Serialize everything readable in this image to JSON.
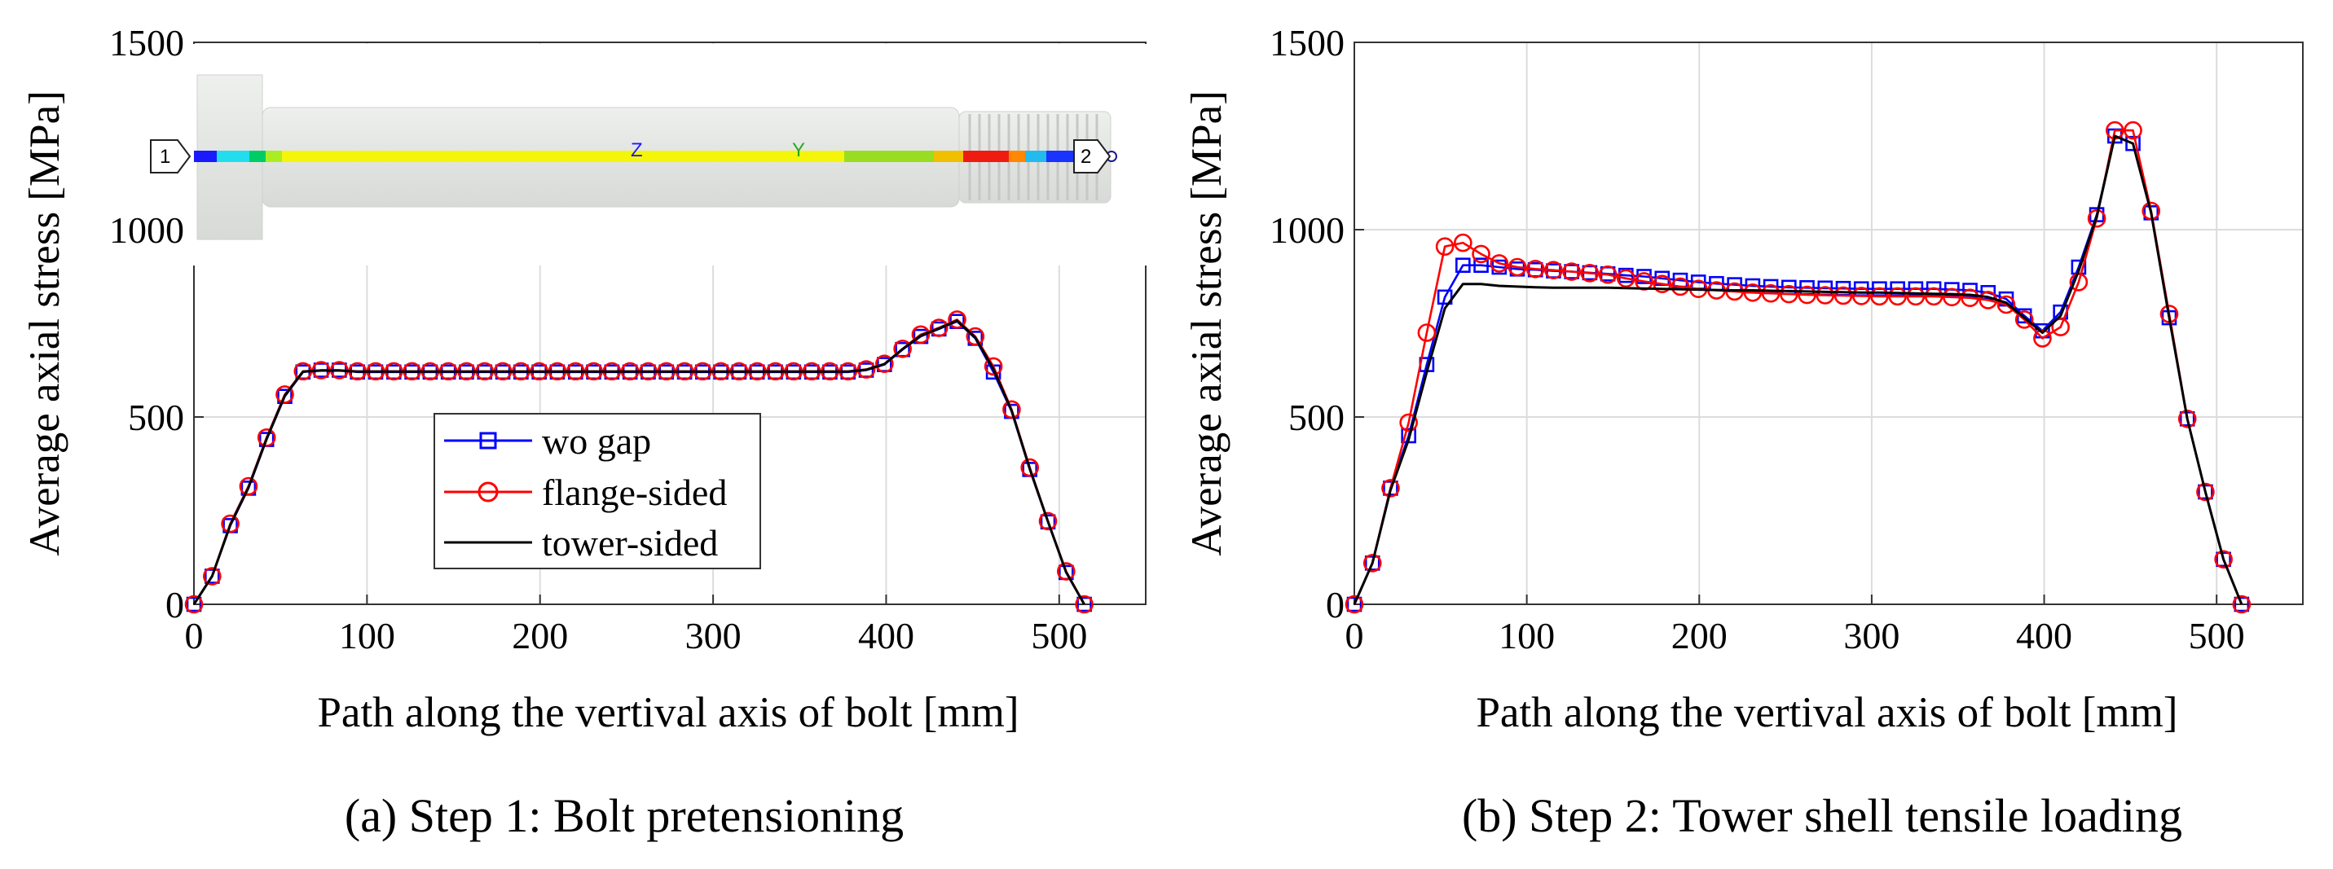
{
  "colors": {
    "wo_gap": "#0000ff",
    "flange_sided": "#ff0000",
    "tower_sided": "#000000",
    "grid": "#dcdcdc",
    "bolt_body": "#e6e8e6"
  },
  "chart_data": [
    {
      "type": "line",
      "id": "a",
      "caption": "(a) Step 1: Bolt pretensioning",
      "xlabel": "Path along the vertival axis of bolt [mm]",
      "ylabel": "Average axial stress [MPa]",
      "xlim": [
        0,
        550
      ],
      "ylim": [
        0,
        1500
      ],
      "xticks": [
        "0",
        "100",
        "200",
        "300",
        "400",
        "500"
      ],
      "yticks": [
        "0",
        "500",
        "1000",
        "1500"
      ],
      "grid": true,
      "legend_position": "lower-center",
      "inset_image": {
        "description": "bolt contour image",
        "labels": [
          "1",
          "2",
          "Z",
          "Y"
        ]
      },
      "series": [
        {
          "name": "wo gap",
          "marker": "square",
          "color_key": "wo_gap",
          "x": [
            0,
            10.5,
            21,
            31.5,
            42,
            52.5,
            63,
            73.5,
            84,
            94.5,
            105,
            115.5,
            126,
            136.5,
            147,
            157.5,
            168,
            178.5,
            189,
            199.5,
            210,
            220.5,
            231,
            241.5,
            252,
            262.5,
            273,
            283.5,
            294,
            304.5,
            315,
            325.5,
            336,
            346.5,
            357,
            367.5,
            378,
            388.5,
            399,
            409.5,
            420,
            430.5,
            441,
            451.5,
            462,
            472.5,
            483,
            493.5,
            504,
            514.5
          ],
          "y": [
            0,
            75,
            210,
            310,
            440,
            555,
            620,
            625,
            625,
            620,
            620,
            620,
            620,
            620,
            620,
            620,
            620,
            620,
            620,
            620,
            620,
            620,
            620,
            620,
            620,
            620,
            620,
            620,
            620,
            620,
            620,
            620,
            620,
            620,
            620,
            620,
            620,
            625,
            640,
            680,
            715,
            735,
            755,
            710,
            620,
            515,
            360,
            220,
            85,
            0
          ]
        },
        {
          "name": "flange-sided",
          "marker": "circle",
          "color_key": "flange_sided",
          "x": [
            0,
            10.5,
            21,
            31.5,
            42,
            52.5,
            63,
            73.5,
            84,
            94.5,
            105,
            115.5,
            126,
            136.5,
            147,
            157.5,
            168,
            178.5,
            189,
            199.5,
            210,
            220.5,
            231,
            241.5,
            252,
            262.5,
            273,
            283.5,
            294,
            304.5,
            315,
            325.5,
            336,
            346.5,
            357,
            367.5,
            378,
            388.5,
            399,
            409.5,
            420,
            430.5,
            441,
            451.5,
            462,
            472.5,
            483,
            493.5,
            504,
            514.5
          ],
          "y": [
            0,
            75,
            215,
            315,
            445,
            560,
            622,
            625,
            625,
            622,
            622,
            622,
            622,
            622,
            622,
            622,
            622,
            622,
            622,
            622,
            622,
            622,
            622,
            622,
            622,
            622,
            622,
            622,
            622,
            622,
            622,
            622,
            622,
            622,
            622,
            622,
            622,
            627,
            642,
            682,
            720,
            738,
            760,
            715,
            635,
            520,
            365,
            222,
            88,
            0
          ]
        },
        {
          "name": "tower-sided",
          "marker": "none",
          "color_key": "tower_sided",
          "x": [
            0,
            10.5,
            21,
            31.5,
            42,
            52.5,
            63,
            73.5,
            84,
            94.5,
            105,
            115.5,
            126,
            136.5,
            147,
            157.5,
            168,
            178.5,
            189,
            199.5,
            210,
            220.5,
            231,
            241.5,
            252,
            262.5,
            273,
            283.5,
            294,
            304.5,
            315,
            325.5,
            336,
            346.5,
            357,
            367.5,
            378,
            388.5,
            399,
            409.5,
            420,
            430.5,
            441,
            451.5,
            462,
            472.5,
            483,
            493.5,
            504,
            514.5
          ],
          "y": [
            0,
            75,
            212,
            312,
            442,
            557,
            621,
            624,
            624,
            621,
            621,
            621,
            621,
            621,
            621,
            621,
            621,
            621,
            621,
            621,
            621,
            621,
            621,
            621,
            621,
            621,
            621,
            621,
            621,
            621,
            621,
            621,
            621,
            621,
            621,
            621,
            621,
            626,
            641,
            681,
            717,
            736,
            757,
            712,
            628,
            517,
            362,
            221,
            86,
            0
          ]
        }
      ]
    },
    {
      "type": "line",
      "id": "b",
      "caption": "(b) Step 2: Tower shell tensile loading",
      "xlabel": "Path along the vertival axis of bolt [mm]",
      "ylabel": "Average axial stress [MPa]",
      "xlim": [
        0,
        550
      ],
      "ylim": [
        0,
        1500
      ],
      "xticks": [
        "0",
        "100",
        "200",
        "300",
        "400",
        "500"
      ],
      "yticks": [
        "0",
        "500",
        "1000",
        "1500"
      ],
      "grid": true,
      "series": [
        {
          "name": "wo gap",
          "marker": "square",
          "color_key": "wo_gap",
          "x": [
            0,
            10.5,
            21,
            31.5,
            42,
            52.5,
            63,
            73.5,
            84,
            94.5,
            105,
            115.5,
            126,
            136.5,
            147,
            157.5,
            168,
            178.5,
            189,
            199.5,
            210,
            220.5,
            231,
            241.5,
            252,
            262.5,
            273,
            283.5,
            294,
            304.5,
            315,
            325.5,
            336,
            346.5,
            357,
            367.5,
            378,
            388.5,
            399,
            409.5,
            420,
            430.5,
            441,
            451.5,
            462,
            472.5,
            483,
            493.5,
            504,
            514.5
          ],
          "y": [
            0,
            110,
            310,
            450,
            640,
            820,
            905,
            905,
            900,
            895,
            893,
            890,
            888,
            885,
            882,
            878,
            875,
            870,
            865,
            860,
            856,
            853,
            850,
            848,
            846,
            845,
            844,
            843,
            842,
            842,
            842,
            842,
            842,
            840,
            838,
            832,
            815,
            770,
            730,
            780,
            900,
            1040,
            1250,
            1230,
            1045,
            765,
            495,
            300,
            120,
            0
          ]
        },
        {
          "name": "flange-sided",
          "marker": "circle",
          "color_key": "flange_sided",
          "x": [
            0,
            10.5,
            21,
            31.5,
            42,
            52.5,
            63,
            73.5,
            84,
            94.5,
            105,
            115.5,
            126,
            136.5,
            147,
            157.5,
            168,
            178.5,
            189,
            199.5,
            210,
            220.5,
            231,
            241.5,
            252,
            262.5,
            273,
            283.5,
            294,
            304.5,
            315,
            325.5,
            336,
            346.5,
            357,
            367.5,
            378,
            388.5,
            399,
            409.5,
            420,
            430.5,
            441,
            451.5,
            462,
            472.5,
            483,
            493.5,
            504,
            514.5
          ],
          "y": [
            0,
            110,
            310,
            485,
            725,
            955,
            965,
            935,
            910,
            900,
            895,
            892,
            888,
            884,
            880,
            870,
            862,
            855,
            848,
            842,
            838,
            835,
            832,
            830,
            828,
            826,
            825,
            824,
            823,
            822,
            822,
            822,
            822,
            820,
            818,
            812,
            800,
            760,
            710,
            740,
            860,
            1030,
            1265,
            1265,
            1050,
            775,
            495,
            300,
            120,
            0
          ]
        },
        {
          "name": "tower-sided",
          "marker": "none",
          "color_key": "tower_sided",
          "x": [
            0,
            10.5,
            21,
            31.5,
            42,
            52.5,
            63,
            73.5,
            84,
            94.5,
            105,
            115.5,
            126,
            136.5,
            147,
            157.5,
            168,
            178.5,
            189,
            199.5,
            210,
            220.5,
            231,
            241.5,
            252,
            262.5,
            273,
            283.5,
            294,
            304.5,
            315,
            325.5,
            336,
            346.5,
            357,
            367.5,
            378,
            388.5,
            399,
            409.5,
            420,
            430.5,
            441,
            451.5,
            462,
            472.5,
            483,
            493.5,
            504,
            514.5
          ],
          "y": [
            0,
            110,
            305,
            440,
            620,
            790,
            855,
            855,
            850,
            848,
            846,
            845,
            845,
            845,
            845,
            844,
            843,
            842,
            841,
            840,
            839,
            838,
            838,
            837,
            836,
            835,
            834,
            833,
            832,
            832,
            831,
            830,
            829,
            828,
            826,
            820,
            805,
            765,
            725,
            770,
            890,
            1035,
            1250,
            1230,
            1045,
            765,
            495,
            300,
            120,
            0
          ]
        }
      ]
    }
  ],
  "legend": {
    "entries": [
      "wo gap",
      "flange-sided",
      "tower-sided"
    ]
  }
}
